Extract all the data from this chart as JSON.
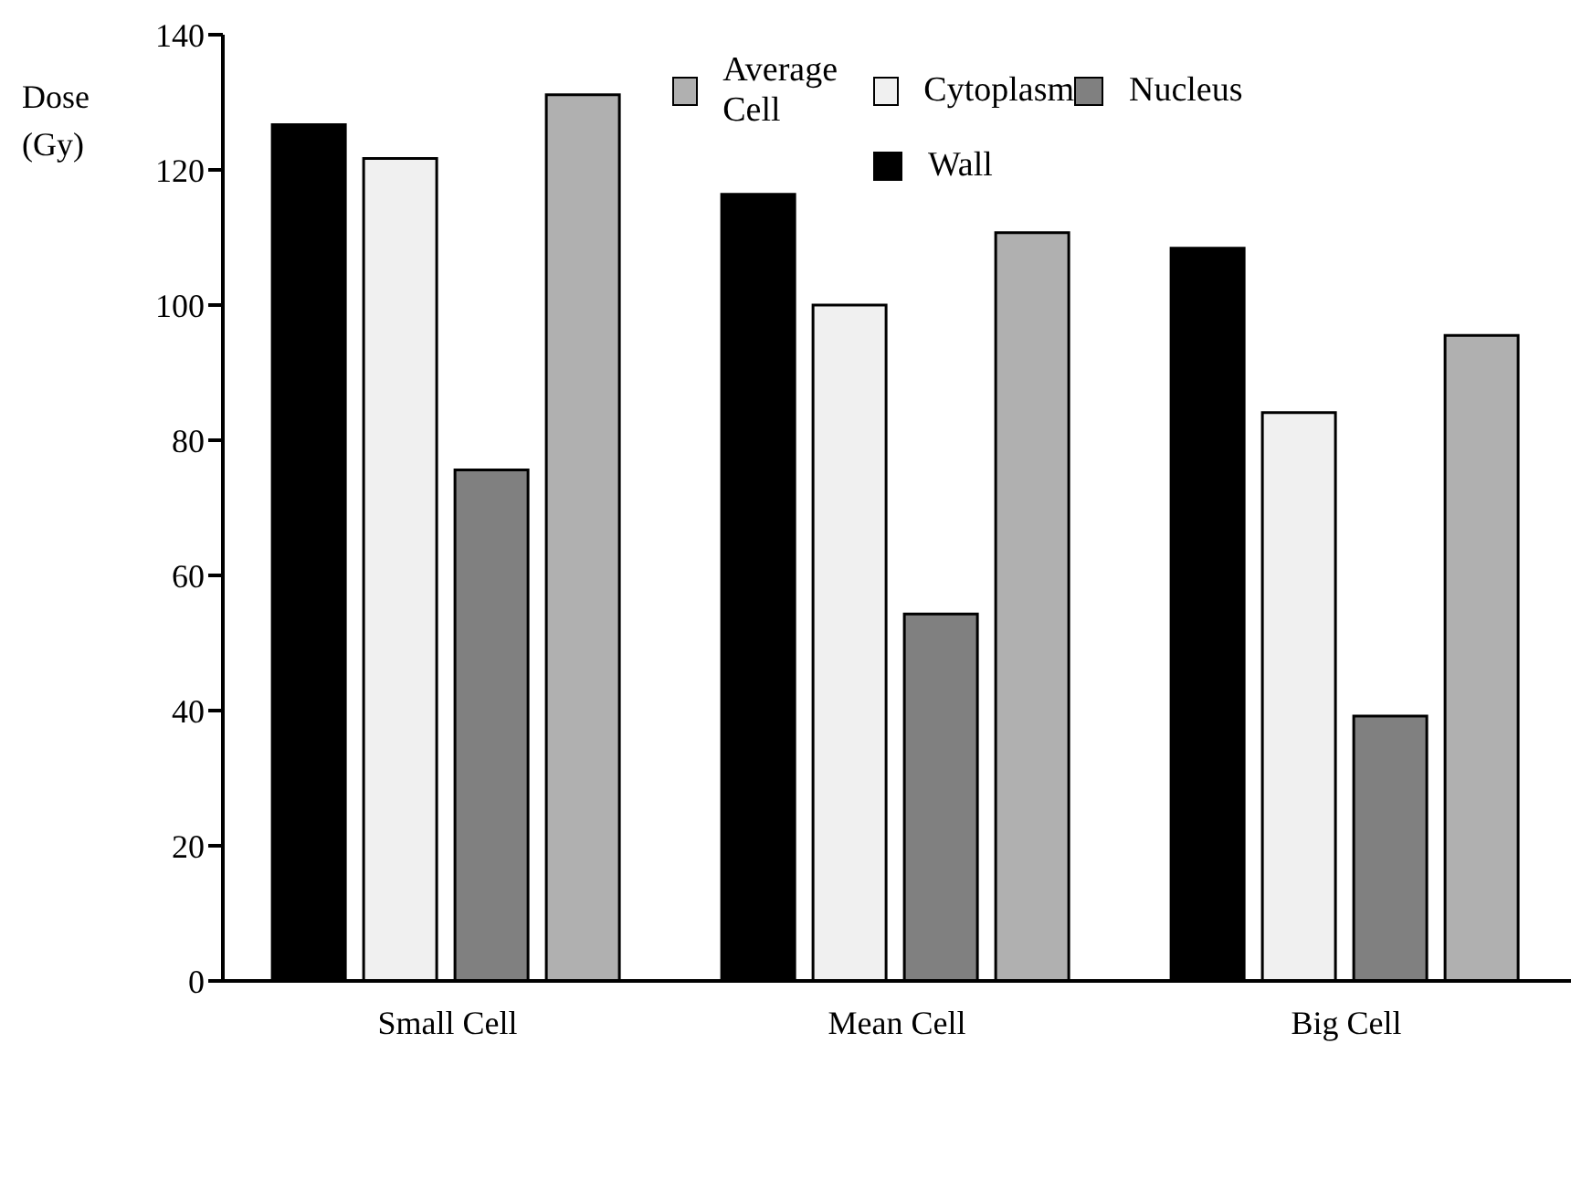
{
  "chart_data": {
    "type": "bar",
    "ylabel": "Dose (Gy)",
    "categories": [
      "Small Cell",
      "Mean Cell",
      "Big Cell"
    ],
    "series": [
      {
        "name": "Wall",
        "color": "#000000",
        "values": [
          126.7,
          116.4,
          108.4
        ]
      },
      {
        "name": "Cytoplasm",
        "color": "#f0f0f0",
        "values": [
          121.7,
          100,
          84.1
        ]
      },
      {
        "name": "Nucleus",
        "color": "#808080",
        "values": [
          75.6,
          54.3,
          39.2
        ]
      },
      {
        "name": "Average Cell",
        "color": "#b0b0b0",
        "values": [
          131.1,
          110.7,
          95.5
        ]
      }
    ],
    "ylim": [
      0,
      140
    ],
    "yticks": [
      0,
      20,
      40,
      60,
      80,
      100,
      120,
      140
    ],
    "grid": false,
    "legend": "top"
  }
}
